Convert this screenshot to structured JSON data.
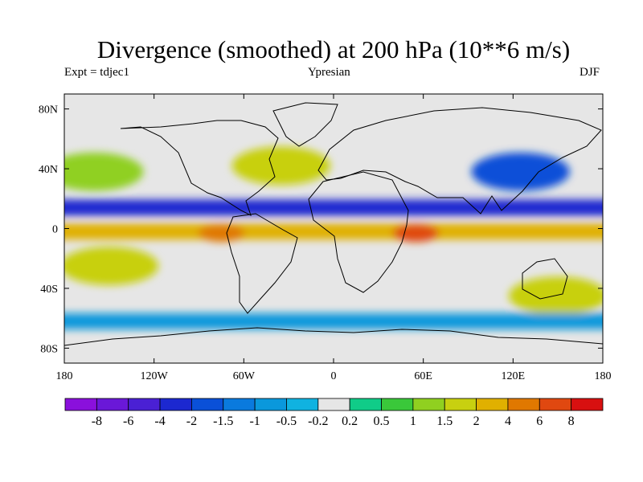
{
  "title": "Divergence (smoothed) at 200 hPa (10**6 m/s)",
  "subtitle_left": "Expt = tdjec1",
  "subtitle_center": "Ypresian",
  "subtitle_right": "DJF",
  "y_tick_labels": [
    "80N",
    "40N",
    "0",
    "40S",
    "80S"
  ],
  "x_tick_labels": [
    "180",
    "120W",
    "60W",
    "0",
    "60E",
    "120E",
    "180"
  ],
  "colorbar": {
    "labels": [
      "-8",
      "-6",
      "-4",
      "-2",
      "-1.5",
      "-1",
      "-0.5",
      "-0.2",
      "0.2",
      "0.5",
      "1",
      "1.5",
      "2",
      "4",
      "6",
      "8"
    ],
    "colors": [
      "#8a10dc",
      "#6a18d8",
      "#4a20d4",
      "#1c28d0",
      "#0a50d8",
      "#0a7ade",
      "#0a98dc",
      "#10b2e0",
      "#e6e6e6",
      "#10cc88",
      "#3ac83a",
      "#90d020",
      "#c8d010",
      "#e0b000",
      "#e07800",
      "#e04810",
      "#d81010"
    ]
  },
  "chart_data": {
    "type": "heatmap",
    "title": "Divergence (smoothed) at 200 hPa (10**6 m/s)",
    "field": "divergence at 200 hPa, season DJF, experiment tdjec1 (Ypresian)",
    "units": "10**6 m/s",
    "lon_range": [
      -180,
      180
    ],
    "lat_range": [
      -90,
      90
    ],
    "contour_levels": [
      -8,
      -6,
      -4,
      -2,
      -1.5,
      -1,
      -0.5,
      -0.2,
      0.2,
      0.5,
      1,
      1.5,
      2,
      4,
      6,
      8
    ],
    "features": [
      {
        "label": "tropical convergence belt",
        "lon_range": [
          -180,
          180
        ],
        "lat_center": 14,
        "value": -4
      },
      {
        "label": "equatorial divergence band",
        "lon_range": [
          -180,
          180
        ],
        "lat_center": -2,
        "value": 2
      },
      {
        "label": "NE Asia convergence",
        "lon": 125,
        "lat": 38,
        "value": -2
      },
      {
        "label": "N Pacific divergence",
        "lon": -160,
        "lat": 38,
        "value": 1
      },
      {
        "label": "N Atlantic divergence",
        "lon": -35,
        "lat": 42,
        "value": 1.5
      },
      {
        "label": "E Africa divergence maximum",
        "lon": 55,
        "lat": -3,
        "value": 6
      },
      {
        "label": "S America divergence maximum",
        "lon": -75,
        "lat": -3,
        "value": 4
      },
      {
        "label": "S Pacific divergence",
        "lon": -150,
        "lat": -25,
        "value": 1.5
      },
      {
        "label": "Australia divergence",
        "lon": 150,
        "lat": -45,
        "value": 1.5
      },
      {
        "label": "Southern Ocean convergence",
        "lon_range": [
          -180,
          180
        ],
        "lat_center": -62,
        "value": -1
      }
    ]
  }
}
